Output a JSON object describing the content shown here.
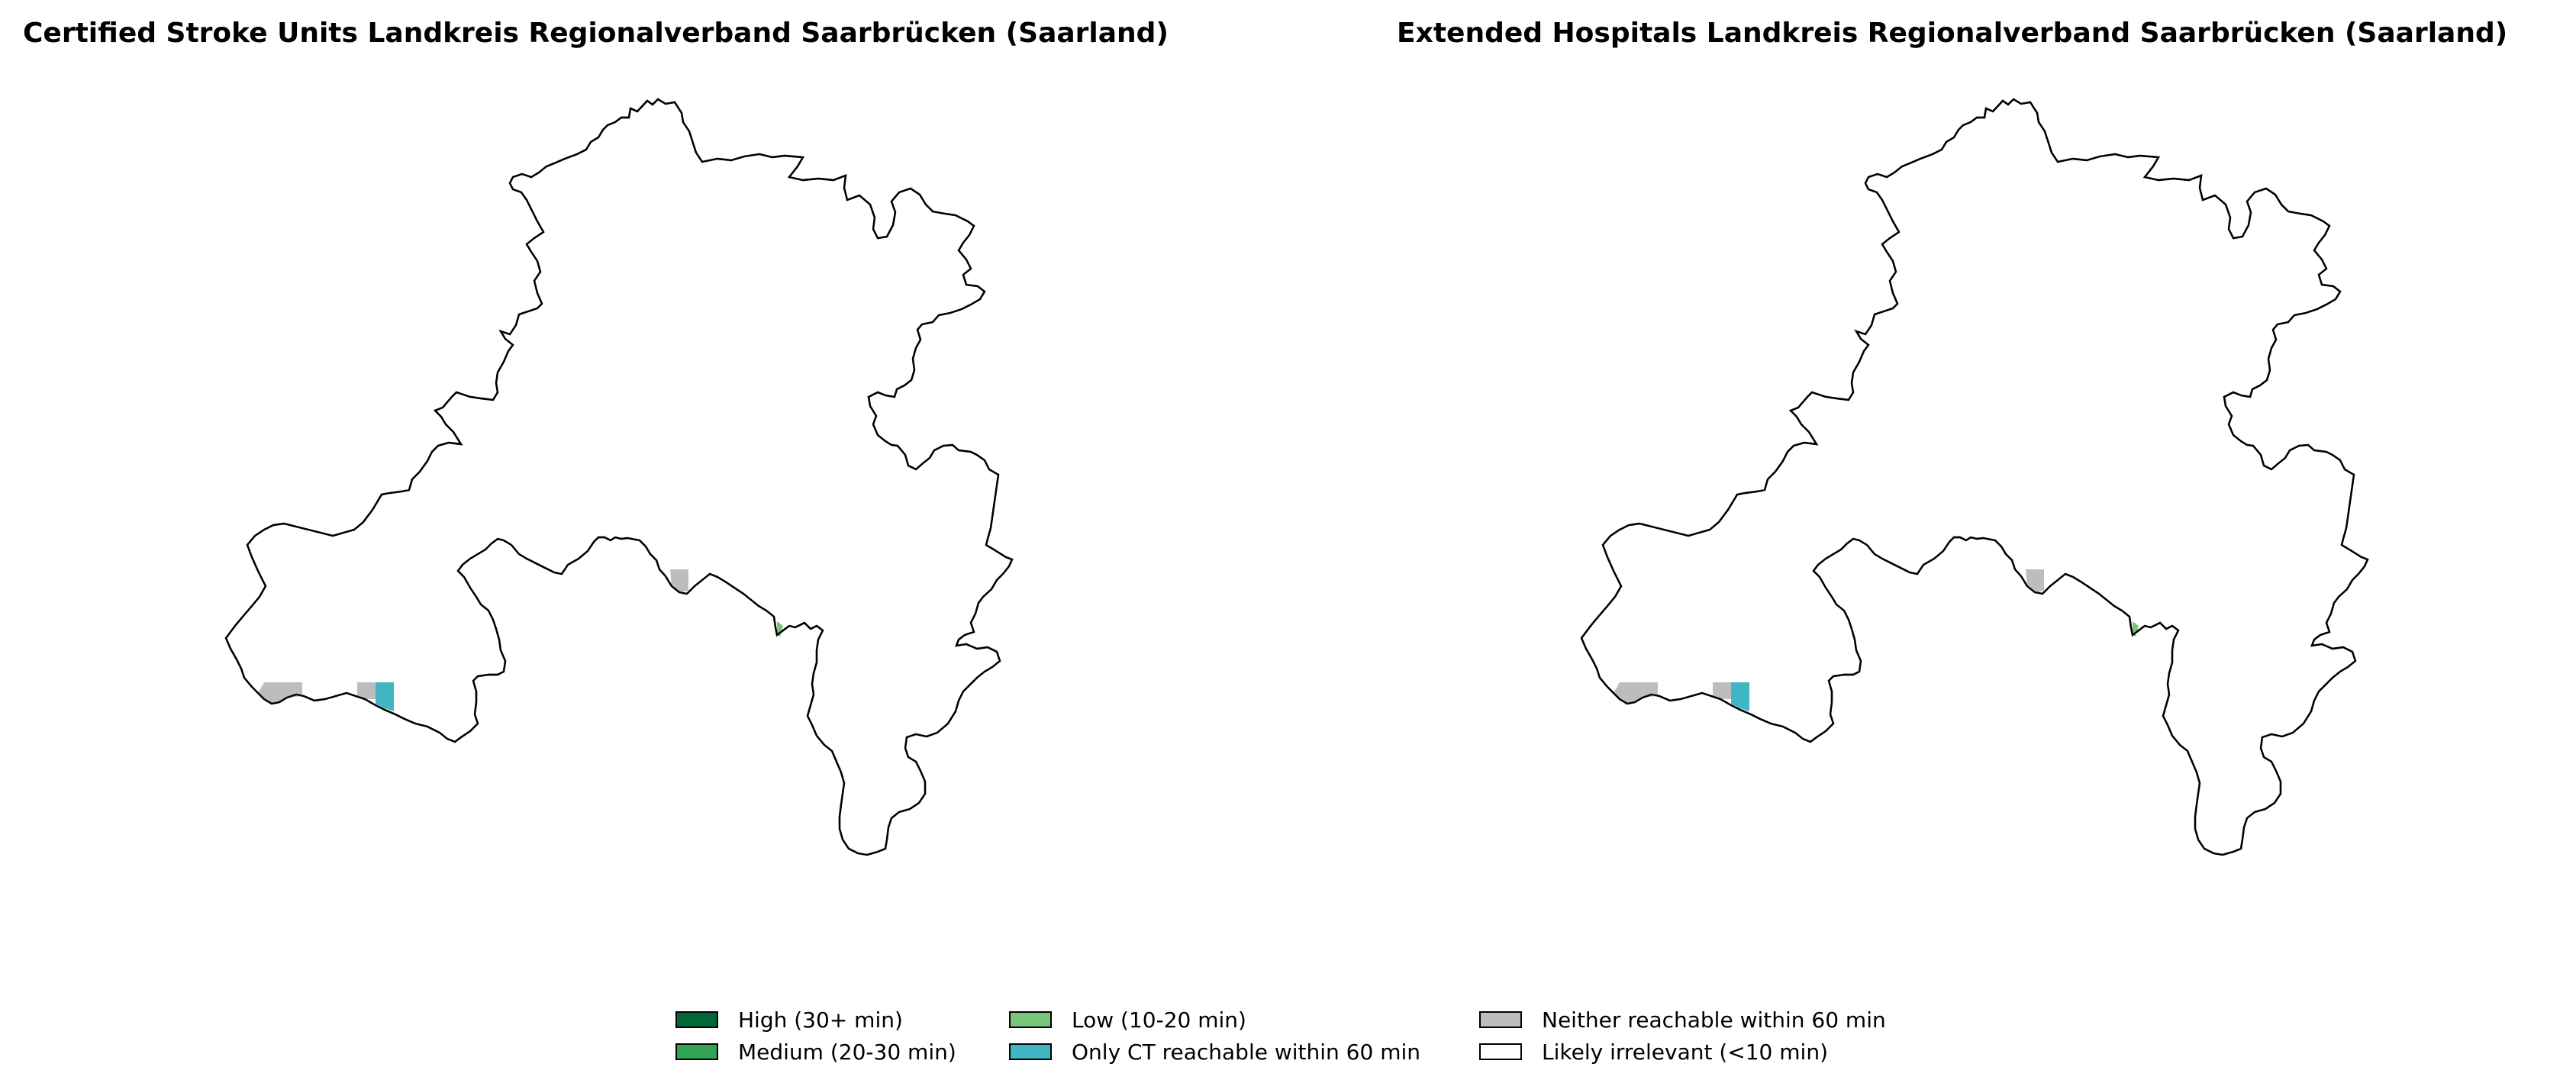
{
  "panels": [
    {
      "title": "Certified Stroke Units Landkreis Regionalverband Saarbrücken (Saarland)"
    },
    {
      "title": "Extended Hospitals Landkreis Regionalverband Saarbrücken (Saarland)"
    }
  ],
  "legend": {
    "items": [
      {
        "label": "High (30+ min)",
        "color": "#006837"
      },
      {
        "label": "Medium (20-30 min)",
        "color": "#31a354"
      },
      {
        "label": "Low (10-20 min)",
        "color": "#78c679"
      },
      {
        "label": "Only CT reachable within 60 min",
        "color": "#41b6c4"
      },
      {
        "label": "Neither reachable within 60 min",
        "color": "#bdbdbd"
      },
      {
        "label": "Likely irrelevant (<10 min)",
        "color": "#ffffff"
      }
    ]
  },
  "colors": {
    "outline": "#000000",
    "background": "#ffffff"
  }
}
